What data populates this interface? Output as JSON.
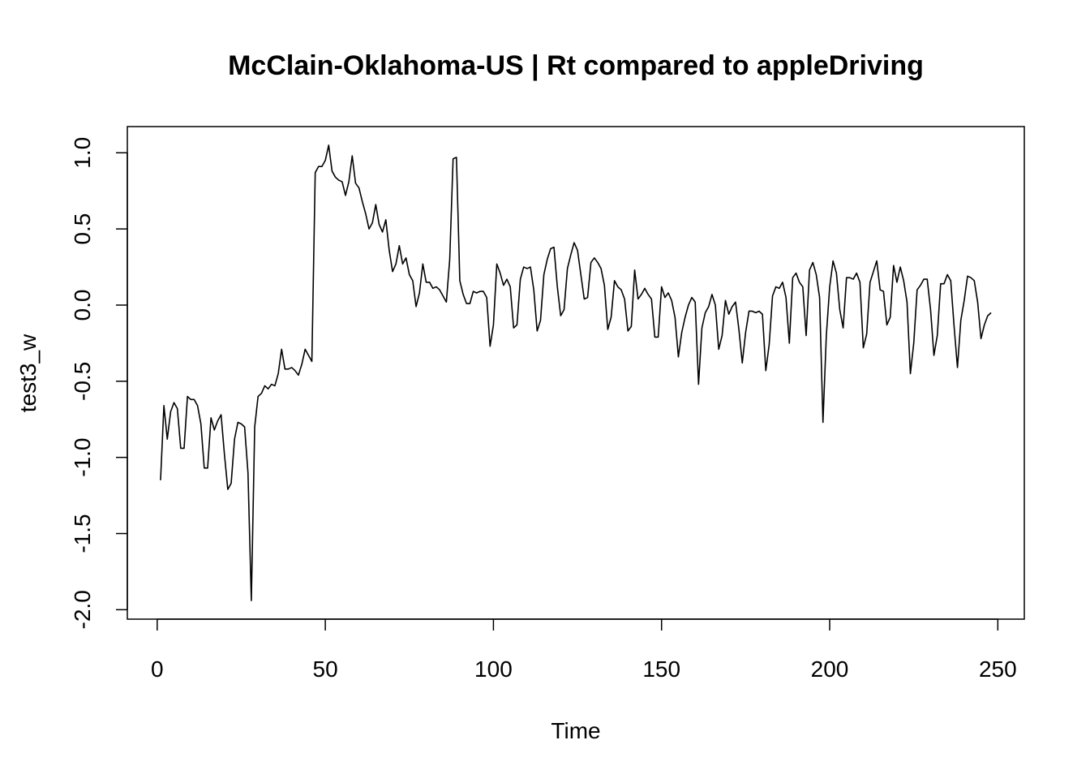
{
  "chart_data": {
    "type": "line",
    "title": "McClain-Oklahoma-US | Rt compared to appleDriving",
    "x_label": "Time",
    "y_label": "test3_w",
    "x": [
      1,
      2,
      3,
      4,
      5,
      6,
      7,
      8,
      9,
      10,
      11,
      12,
      13,
      14,
      15,
      16,
      17,
      18,
      19,
      20,
      21,
      22,
      23,
      24,
      25,
      26,
      27,
      28,
      29,
      30,
      31,
      32,
      33,
      34,
      35,
      36,
      37,
      38,
      39,
      40,
      41,
      42,
      43,
      44,
      45,
      46,
      47,
      48,
      49,
      50,
      51,
      52,
      53,
      54,
      55,
      56,
      57,
      58,
      59,
      60,
      61,
      62,
      63,
      64,
      65,
      66,
      67,
      68,
      69,
      70,
      71,
      72,
      73,
      74,
      75,
      76,
      77,
      78,
      79,
      80,
      81,
      82,
      83,
      84,
      85,
      86,
      87,
      88,
      89,
      90,
      91,
      92,
      93,
      94,
      95,
      96,
      97,
      98,
      99,
      100,
      101,
      102,
      103,
      104,
      105,
      106,
      107,
      108,
      109,
      110,
      111,
      112,
      113,
      114,
      115,
      116,
      117,
      118,
      119,
      120,
      121,
      122,
      123,
      124,
      125,
      126,
      127,
      128,
      129,
      130,
      131,
      132,
      133,
      134,
      135,
      136,
      137,
      138,
      139,
      140,
      141,
      142,
      143,
      144,
      145,
      146,
      147,
      148,
      149,
      150,
      151,
      152,
      153,
      154,
      155,
      156,
      157,
      158,
      159,
      160,
      161,
      162,
      163,
      164,
      165,
      166,
      167,
      168,
      169,
      170,
      171,
      172,
      173,
      174,
      175,
      176,
      177,
      178,
      179,
      180,
      181,
      182,
      183,
      184,
      185,
      186,
      187,
      188,
      189,
      190,
      191,
      192,
      193,
      194,
      195,
      196,
      197,
      198,
      199,
      200,
      201,
      202,
      203,
      204,
      205,
      206,
      207,
      208,
      209,
      210,
      211,
      212,
      213,
      214,
      215,
      216,
      217,
      218,
      219,
      220,
      221,
      222,
      223,
      224,
      225,
      226,
      227,
      228,
      229,
      230,
      231,
      232,
      233,
      234,
      235,
      236,
      237,
      238,
      239,
      240,
      241,
      242,
      243,
      244,
      245,
      246,
      247,
      248
    ],
    "series": [
      {
        "name": "test3_w",
        "color": "#000000",
        "values": [
          -1.15,
          -0.66,
          -0.88,
          -0.7,
          -0.64,
          -0.68,
          -0.94,
          -0.94,
          -0.6,
          -0.62,
          -0.62,
          -0.66,
          -0.78,
          -1.07,
          -1.07,
          -0.74,
          -0.82,
          -0.76,
          -0.72,
          -0.98,
          -1.21,
          -1.17,
          -0.88,
          -0.77,
          -0.78,
          -0.8,
          -1.1,
          -1.94,
          -0.8,
          -0.6,
          -0.58,
          -0.53,
          -0.55,
          -0.52,
          -0.53,
          -0.45,
          -0.29,
          -0.42,
          -0.42,
          -0.41,
          -0.43,
          -0.46,
          -0.39,
          -0.29,
          -0.33,
          -0.37,
          0.87,
          0.91,
          0.91,
          0.95,
          1.05,
          0.88,
          0.84,
          0.82,
          0.81,
          0.72,
          0.81,
          0.98,
          0.8,
          0.77,
          0.68,
          0.6,
          0.5,
          0.54,
          0.66,
          0.53,
          0.48,
          0.56,
          0.36,
          0.22,
          0.27,
          0.39,
          0.27,
          0.31,
          0.2,
          0.16,
          -0.01,
          0.08,
          0.27,
          0.15,
          0.15,
          0.11,
          0.12,
          0.1,
          0.06,
          0.02,
          0.3,
          0.96,
          0.97,
          0.16,
          0.07,
          0.01,
          0.01,
          0.09,
          0.08,
          0.09,
          0.09,
          0.05,
          -0.27,
          -0.13,
          0.27,
          0.21,
          0.13,
          0.17,
          0.12,
          -0.15,
          -0.13,
          0.17,
          0.25,
          0.24,
          0.25,
          0.1,
          -0.17,
          -0.1,
          0.2,
          0.3,
          0.37,
          0.38,
          0.12,
          -0.07,
          -0.03,
          0.24,
          0.33,
          0.41,
          0.36,
          0.2,
          0.04,
          0.05,
          0.28,
          0.31,
          0.28,
          0.24,
          0.13,
          -0.16,
          -0.08,
          0.16,
          0.12,
          0.1,
          0.04,
          -0.17,
          -0.14,
          0.23,
          0.04,
          0.07,
          0.11,
          0.07,
          0.04,
          -0.21,
          -0.21,
          0.12,
          0.05,
          0.08,
          0.03,
          -0.08,
          -0.34,
          -0.18,
          -0.08,
          0.0,
          0.05,
          0.02,
          -0.52,
          -0.15,
          -0.05,
          -0.01,
          0.07,
          0.0,
          -0.29,
          -0.2,
          0.03,
          -0.06,
          -0.01,
          0.02,
          -0.16,
          -0.38,
          -0.18,
          -0.04,
          -0.04,
          -0.05,
          -0.04,
          -0.06,
          -0.43,
          -0.26,
          0.06,
          0.12,
          0.11,
          0.15,
          0.05,
          -0.25,
          0.18,
          0.21,
          0.15,
          0.12,
          -0.2,
          0.23,
          0.28,
          0.2,
          0.05,
          -0.77,
          -0.2,
          0.12,
          0.29,
          0.21,
          -0.03,
          -0.15,
          0.18,
          0.18,
          0.17,
          0.21,
          0.15,
          -0.28,
          -0.19,
          0.15,
          0.22,
          0.29,
          0.1,
          0.09,
          -0.13,
          -0.08,
          0.26,
          0.15,
          0.25,
          0.16,
          0.02,
          -0.45,
          -0.25,
          0.1,
          0.13,
          0.17,
          0.17,
          -0.03,
          -0.33,
          -0.2,
          0.14,
          0.14,
          0.2,
          0.16,
          -0.14,
          -0.41,
          -0.1,
          0.03,
          0.19,
          0.18,
          0.16,
          0.02,
          -0.22,
          -0.13,
          -0.07,
          -0.05
        ]
      }
    ],
    "xlim": [
      -8.88,
      257.88
    ],
    "ylim": [
      -2.062,
      1.172
    ],
    "xticks": [
      0,
      50,
      100,
      150,
      200,
      250
    ],
    "yticks": [
      {
        "value": -2,
        "label": "-2.0"
      },
      -1.5,
      {
        "value": -1,
        "label": "-1.0"
      },
      -0.5,
      {
        "value": 0,
        "label": "0.0"
      },
      0.5,
      {
        "value": 1,
        "label": "1.0"
      }
    ]
  }
}
